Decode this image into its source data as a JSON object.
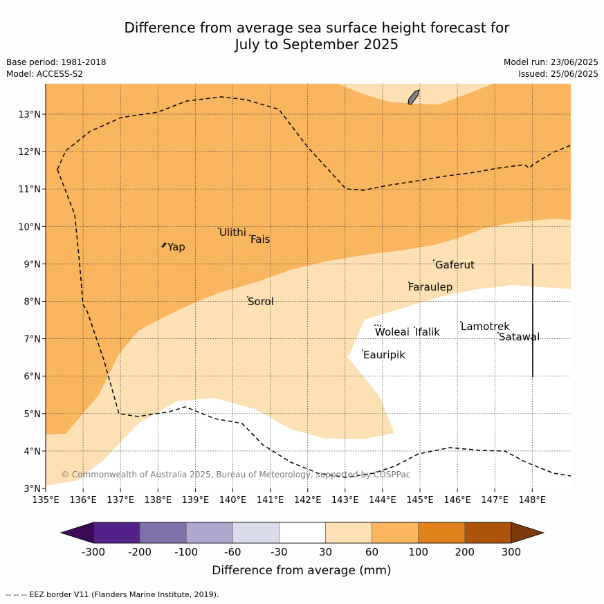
{
  "title_line1": "Difference from average sea surface height forecast for",
  "title_line2": "July to September 2025",
  "meta": {
    "base_period": "Base period: 1981-2018",
    "model": "Model: ACCESS-S2",
    "model_run": "Model run: 23/06/2025",
    "issued": "Issued: 25/06/2025"
  },
  "map": {
    "lon_ticks": [
      "135°E",
      "136°E",
      "137°E",
      "138°E",
      "139°E",
      "140°E",
      "141°E",
      "142°E",
      "143°E",
      "144°E",
      "145°E",
      "146°E",
      "147°E",
      "148°E"
    ],
    "lat_ticks": [
      "3°N",
      "4°N",
      "5°N",
      "6°N",
      "7°N",
      "8°N",
      "9°N",
      "10°N",
      "11°N",
      "12°N",
      "13°N"
    ],
    "places": [
      {
        "name": "Yap"
      },
      {
        "name": "Ulithi"
      },
      {
        "name": "Fais"
      },
      {
        "name": "Sorol"
      },
      {
        "name": "Gaferut"
      },
      {
        "name": "Faraulep"
      },
      {
        "name": "Woleai"
      },
      {
        "name": "Ifalik"
      },
      {
        "name": "Eauripik"
      },
      {
        "name": "Lamotrek"
      },
      {
        "name": "Satawal"
      }
    ],
    "copyright": "© Commonwealth of Australia 2025, Bureau of Meteorology, supported by COSPPac",
    "colors": {
      "band_30_60": "#fde0b4",
      "band_60_100": "#fab55f",
      "land": "#808080"
    }
  },
  "colorbar": {
    "ticks": [
      "-300",
      "-200",
      "-100",
      "-60",
      "-30",
      "30",
      "60",
      "100",
      "200",
      "300"
    ],
    "label": "Difference from average (mm)",
    "colors": [
      "#3b0a54",
      "#52218a",
      "#7f70aa",
      "#b0a7cf",
      "#dadbed",
      "#ffffff",
      "#fde0b4",
      "#fab55f",
      "#e0821a",
      "#ac5309",
      "#7a3a09"
    ]
  },
  "footnote": "--  --  -- EEZ border V11 (Flanders Marine Institute, 2019)."
}
